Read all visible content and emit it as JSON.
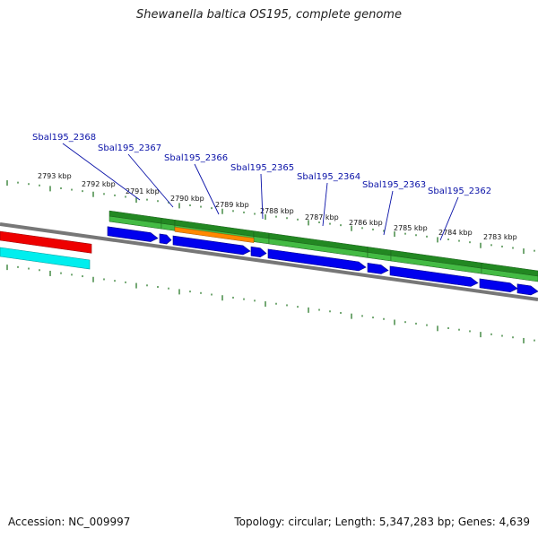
{
  "title": "Shewanella baltica OS195, complete genome",
  "footer": {
    "accession": "Accession: NC_009997",
    "summary": "Topology: circular; Length: 5,347,283 bp; Genes: 4,639"
  },
  "scale_labels": [
    "2793 kbp",
    "2792 kbp",
    "2791 kbp",
    "2790 kbp",
    "2789 kbp",
    "2788 kbp",
    "2787 kbp",
    "2786 kbp",
    "2785 kbp",
    "2784 kbp",
    "2783 kbp"
  ],
  "gene_labels": [
    "Sbal195_2368",
    "Sbal195_2367",
    "Sbal195_2366",
    "Sbal195_2365",
    "Sbal195_2364",
    "Sbal195_2363",
    "Sbal195_2362"
  ],
  "colors": {
    "cds_blue": "#0000ee",
    "gene_green": "#44bb44",
    "gene_dark_green": "#228822",
    "highlight_orange": "#ff8800",
    "red_feature": "#ee0000",
    "cyan_feature": "#00eeee",
    "backbone": "#777777",
    "ticks": "#2a7a2a",
    "label_blue": "#0a12a8"
  }
}
